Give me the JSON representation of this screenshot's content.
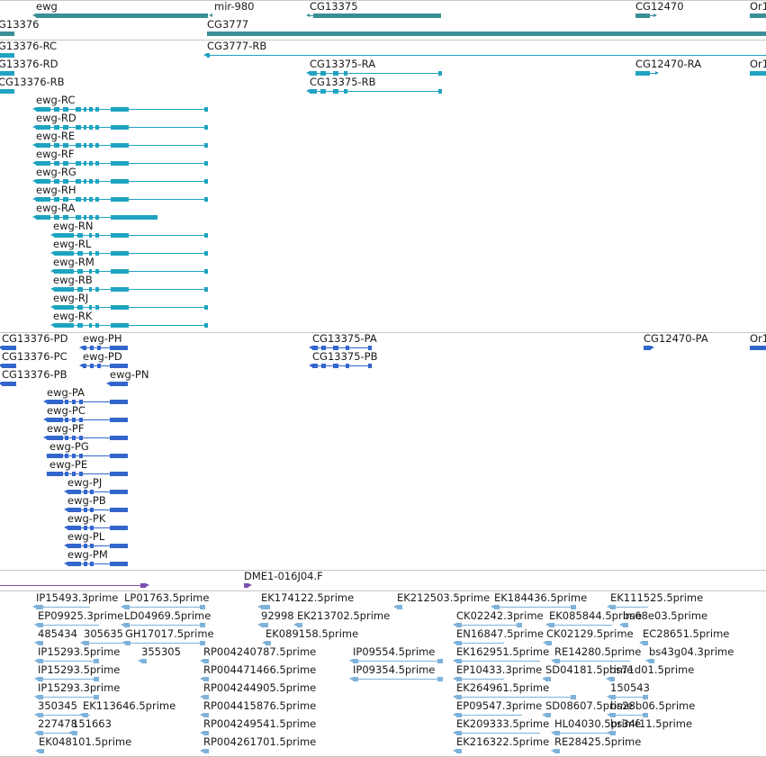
{
  "colors": {
    "gene": "#3a8e96",
    "transcript": "#1ea3c0",
    "protein": "#3366cc",
    "clone": "#7a4fb0",
    "est": "#7fb2d9",
    "divider": "#c8c8c8",
    "text": "#1a1a1a"
  },
  "tracks": {
    "genes": [
      {
        "label": "ewg"
      },
      {
        "label": "mir-980"
      },
      {
        "label": "CG13375"
      },
      {
        "label": "CG12470"
      },
      {
        "label": "Or1"
      },
      {
        "label": "G13376"
      },
      {
        "label": "CG3777"
      }
    ],
    "transcripts": [
      {
        "label": "G13376-RC"
      },
      {
        "label": "CG3777-RB"
      },
      {
        "label": "G13376-RD"
      },
      {
        "label": "CG13375-RA"
      },
      {
        "label": "CG12470-RA"
      },
      {
        "label": "Or1"
      },
      {
        "label": "CG13376-RB"
      },
      {
        "label": "CG13375-RB"
      },
      {
        "label": "ewg-RC"
      },
      {
        "label": "ewg-RD"
      },
      {
        "label": "ewg-RE"
      },
      {
        "label": "ewg-RF"
      },
      {
        "label": "ewg-RG"
      },
      {
        "label": "ewg-RH"
      },
      {
        "label": "ewg-RA"
      },
      {
        "label": "ewg-RN"
      },
      {
        "label": "ewg-RL"
      },
      {
        "label": "ewg-RM"
      },
      {
        "label": "ewg-RB"
      },
      {
        "label": "ewg-RJ"
      },
      {
        "label": "ewg-RK"
      }
    ],
    "proteins": [
      {
        "label": "CG13376-PD"
      },
      {
        "label": "ewg-PH"
      },
      {
        "label": "CG13375-PA"
      },
      {
        "label": "CG12470-PA"
      },
      {
        "label": "Or1"
      },
      {
        "label": "CG13376-PC"
      },
      {
        "label": "ewg-PD"
      },
      {
        "label": "CG13375-PB"
      },
      {
        "label": "CG13376-PB"
      },
      {
        "label": "ewg-PN"
      },
      {
        "label": "ewg-PA"
      },
      {
        "label": "ewg-PC"
      },
      {
        "label": "ewg-PF"
      },
      {
        "label": "ewg-PG"
      },
      {
        "label": "ewg-PE"
      },
      {
        "label": "ewg-PJ"
      },
      {
        "label": "ewg-PB"
      },
      {
        "label": "ewg-PK"
      },
      {
        "label": "ewg-PL"
      },
      {
        "label": "ewg-PM"
      }
    ],
    "clones": [
      {
        "label": ""
      },
      {
        "label": "DME1-016J04.F"
      }
    ],
    "ests": [
      {
        "label": "IP15493.3prime"
      },
      {
        "label": "LP01763.5prime"
      },
      {
        "label": "EK174122.5prime"
      },
      {
        "label": "EK212503.5prime"
      },
      {
        "label": "EK184436.5prime"
      },
      {
        "label": "EK111525.5prime"
      },
      {
        "label": "EP09925.3prime"
      },
      {
        "label": "LD04969.5prime"
      },
      {
        "label": "92998"
      },
      {
        "label": "EK213702.5prime"
      },
      {
        "label": "CK02242.3prime"
      },
      {
        "label": "EK085844.5prime"
      },
      {
        "label": "bs68e03.5prime"
      },
      {
        "label": "485434"
      },
      {
        "label": "305635"
      },
      {
        "label": "GH17017.5prime"
      },
      {
        "label": "EK089158.5prime"
      },
      {
        "label": "EN16847.5prime"
      },
      {
        "label": "CK02129.5prime"
      },
      {
        "label": "EC28651.5prime"
      },
      {
        "label": "IP15293.5prime"
      },
      {
        "label": "355305"
      },
      {
        "label": "RP004240787.5prime"
      },
      {
        "label": "IP09554.5prime"
      },
      {
        "label": "EK162951.5prime"
      },
      {
        "label": "RE14280.5prime"
      },
      {
        "label": "bs43g04.3prime"
      },
      {
        "label": "IP15293.5prime"
      },
      {
        "label": "RP004471466.5prime"
      },
      {
        "label": "IP09354.5prime"
      },
      {
        "label": "EP10433.3prime"
      },
      {
        "label": "SD04181.5prime"
      },
      {
        "label": "bs71d01.5prime"
      },
      {
        "label": "IP15293.3prime"
      },
      {
        "label": "RP004244905.5prime"
      },
      {
        "label": "EK264961.5prime"
      },
      {
        "label": "150543"
      },
      {
        "label": "350345"
      },
      {
        "label": "EK113646.5prime"
      },
      {
        "label": "RP004415876.5prime"
      },
      {
        "label": "EP09547.3prime"
      },
      {
        "label": "SD08607.5prime"
      },
      {
        "label": "bs28b06.5prime"
      },
      {
        "label": "227478"
      },
      {
        "label": "151663"
      },
      {
        "label": "RP004249541.5prime"
      },
      {
        "label": "EK209333.5prime"
      },
      {
        "label": "HL04030.5prime"
      },
      {
        "label": "bs34f11.5prime"
      },
      {
        "label": "EK048101.5prime"
      },
      {
        "label": "RP004261701.5prime"
      },
      {
        "label": "EK216322.5prime"
      },
      {
        "label": "RE28425.5prime"
      }
    ]
  }
}
